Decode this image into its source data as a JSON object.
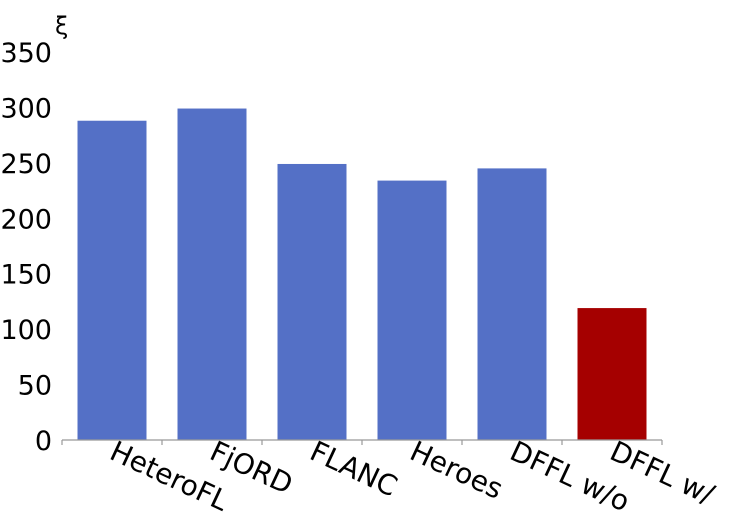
{
  "chart_data": {
    "type": "bar",
    "title": "",
    "xlabel": "",
    "ylabel": "ξ",
    "ylim": [
      0,
      350
    ],
    "yticks": [
      0,
      50,
      100,
      150,
      200,
      250,
      300,
      350
    ],
    "grid": false,
    "categories": [
      "HeteroFL",
      "FjORD",
      "FLANC",
      "Heroes",
      "DFFL w/o",
      "DFFL w/"
    ],
    "values": [
      288,
      299,
      249,
      234,
      245,
      119
    ],
    "colors": [
      "#5470c6",
      "#5470c6",
      "#5470c6",
      "#5470c6",
      "#5470c6",
      "#a50000"
    ]
  }
}
